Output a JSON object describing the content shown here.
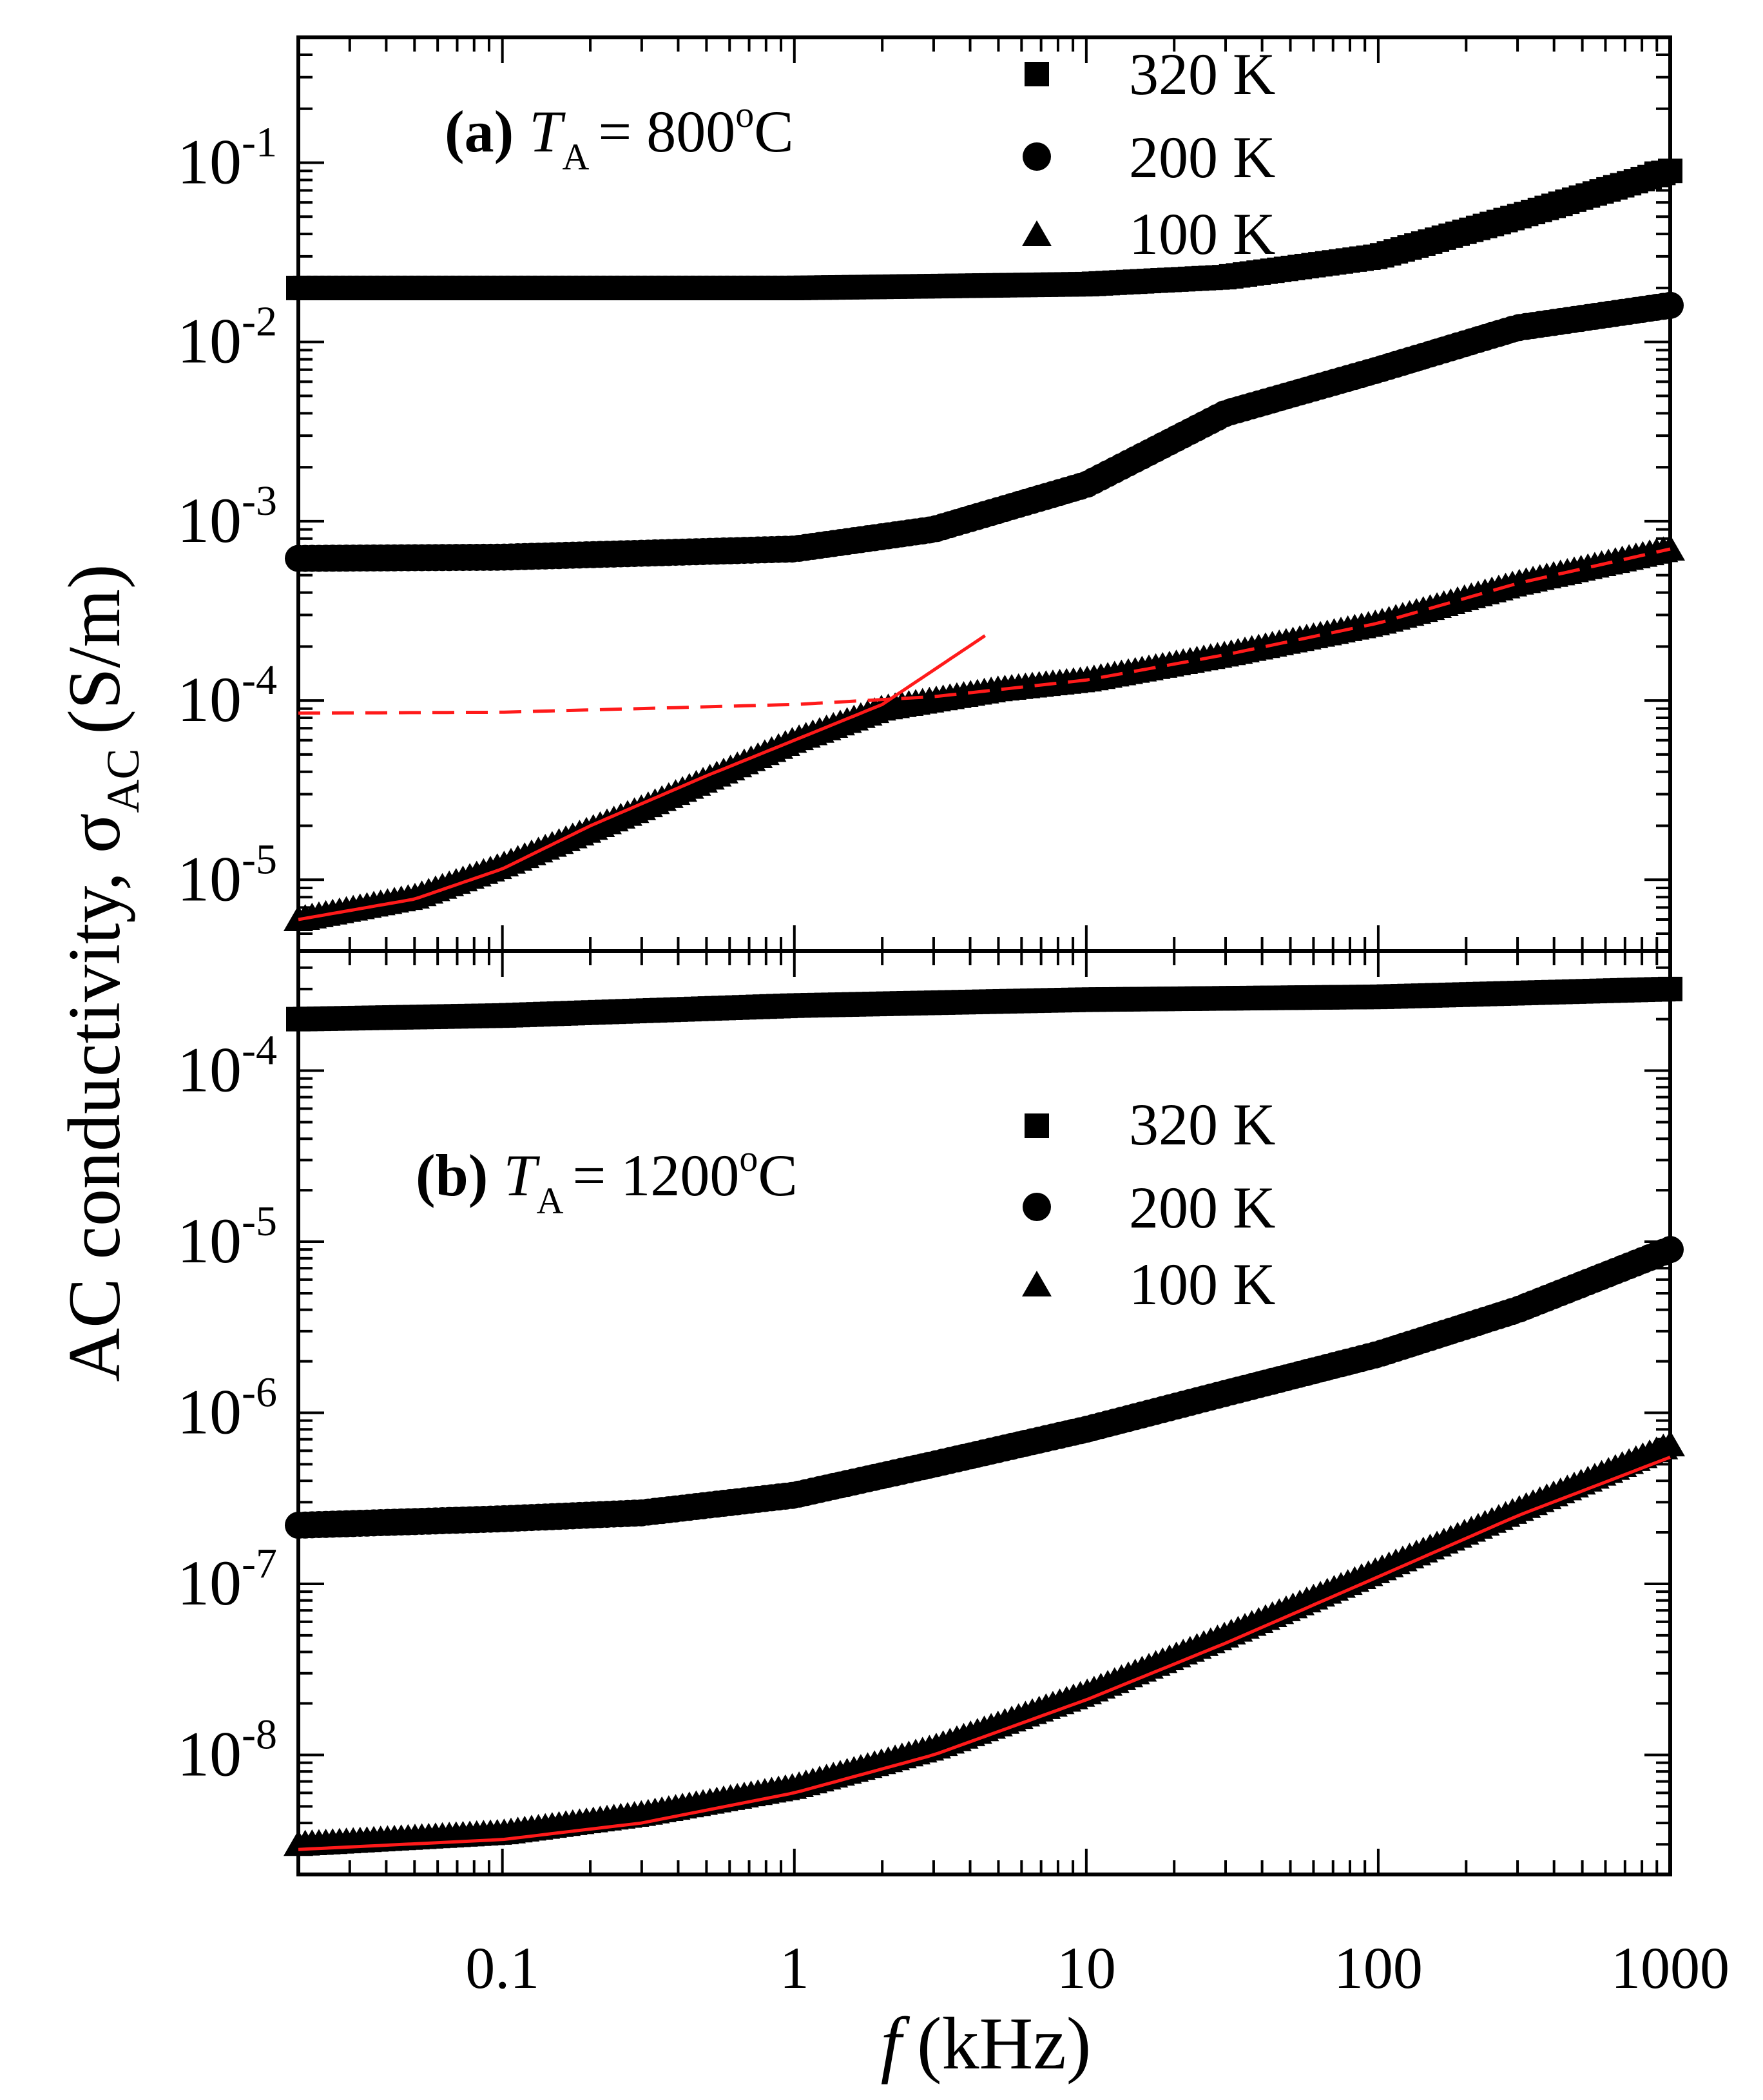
{
  "chart_data": {
    "type": "scatter",
    "x_scale": "log",
    "y_scale": "log",
    "xlabel_symbol": "f",
    "xlabel_unit": "(kHz)",
    "xlim": [
      0.02,
      1000
    ],
    "x_ticks": [
      "0.1",
      "1",
      "10",
      "100",
      "1000"
    ],
    "x_tick_values": [
      0.1,
      1,
      10,
      100,
      1000
    ],
    "ylabel": "AC conductivity, σ",
    "ylabel_sub": "AC",
    "ylabel_unit": "(S/m)",
    "colors": {
      "markers": "#000000",
      "fit": "#ff1a1a"
    },
    "panels": [
      {
        "id": "a",
        "label": "(a)",
        "annotation_symbol": "T",
        "annotation_sub": "A",
        "annotation_value": "= 800",
        "annotation_sup": "o",
        "annotation_unit": "C",
        "ylim": [
          4e-06,
          0.5
        ],
        "y_ticks": [
          {
            "base": "10",
            "exp": "-1",
            "value": 0.1
          },
          {
            "base": "10",
            "exp": "-2",
            "value": 0.01
          },
          {
            "base": "10",
            "exp": "-3",
            "value": 0.001
          },
          {
            "base": "10",
            "exp": "-4",
            "value": 0.0001
          },
          {
            "base": "10",
            "exp": "-5",
            "value": 1e-05
          }
        ],
        "legend": [
          {
            "marker": "square",
            "label": "320 K"
          },
          {
            "marker": "circle",
            "label": "200 K"
          },
          {
            "marker": "triangle",
            "label": "100 K"
          }
        ],
        "series": [
          {
            "name": "320 K",
            "marker": "square",
            "x": [
              0.02,
              1,
              10,
              30,
              100,
              300,
              1000
            ],
            "y": [
              0.02,
              0.02,
              0.021,
              0.023,
              0.03,
              0.05,
              0.09
            ]
          },
          {
            "name": "200 K",
            "marker": "circle",
            "x": [
              0.02,
              0.1,
              1,
              3,
              10,
              30,
              100,
              300,
              1000
            ],
            "y": [
              0.00062,
              0.00063,
              0.0007,
              0.0009,
              0.0016,
              0.004,
              0.007,
              0.012,
              0.016
            ]
          },
          {
            "name": "100 K",
            "marker": "triangle",
            "x": [
              0.02,
              0.05,
              0.1,
              0.3,
              1,
              2,
              5,
              10,
              30,
              100,
              300,
              1000
            ],
            "y": [
              6e-06,
              8e-06,
              1.2e-05,
              2.5e-05,
              6e-05,
              9e-05,
              0.000115,
              0.00013,
              0.00018,
              0.00027,
              0.00045,
              0.0007
            ]
          }
        ],
        "fits": [
          {
            "style": "solid",
            "x": [
              0.02,
              0.05,
              0.1,
              0.2,
              0.5,
              1,
              2,
              4.5
            ],
            "y": [
              6e-06,
              7.8e-06,
              1.15e-05,
              2e-05,
              3.8e-05,
              6e-05,
              9.5e-05,
              0.00023
            ]
          },
          {
            "style": "dashed",
            "x": [
              0.02,
              0.1,
              1,
              3,
              10,
              30,
              100,
              300,
              1000
            ],
            "y": [
              8.5e-05,
              8.6e-05,
              9.5e-05,
              0.000105,
              0.00013,
              0.00018,
              0.00027,
              0.00045,
              0.0007
            ]
          }
        ]
      },
      {
        "id": "b",
        "label": "(b)",
        "annotation_symbol": "T",
        "annotation_sub": "A",
        "annotation_value": "= 1200",
        "annotation_sup": "o",
        "annotation_unit": "C",
        "ylim": [
          2e-09,
          0.0005
        ],
        "y_ticks": [
          {
            "base": "10",
            "exp": "-4",
            "value": 0.0001
          },
          {
            "base": "10",
            "exp": "-5",
            "value": 1e-05
          },
          {
            "base": "10",
            "exp": "-6",
            "value": 1e-06
          },
          {
            "base": "10",
            "exp": "-7",
            "value": 1e-07
          },
          {
            "base": "10",
            "exp": "-8",
            "value": 1e-08
          }
        ],
        "legend": [
          {
            "marker": "square",
            "label": "320 K"
          },
          {
            "marker": "circle",
            "label": "200 K"
          },
          {
            "marker": "triangle",
            "label": "100 K"
          }
        ],
        "series": [
          {
            "name": "320 K",
            "marker": "square",
            "x": [
              0.02,
              0.1,
              1,
              10,
              100,
              1000
            ],
            "y": [
              0.0002,
              0.00021,
              0.00024,
              0.00026,
              0.00027,
              0.0003
            ]
          },
          {
            "name": "200 K",
            "marker": "circle",
            "x": [
              0.02,
              0.1,
              0.3,
              1,
              3,
              10,
              30,
              100,
              300,
              1000
            ],
            "y": [
              2.2e-07,
              2.4e-07,
              2.6e-07,
              3.3e-07,
              5e-07,
              8e-07,
              1.3e-06,
              2.2e-06,
              4e-06,
              9e-06
            ]
          },
          {
            "name": "100 K",
            "marker": "triangle",
            "x": [
              0.02,
              0.1,
              0.3,
              1,
              3,
              10,
              30,
              100,
              300,
              1000
            ],
            "y": [
              3e-09,
              3.5e-09,
              4.5e-09,
              6.5e-09,
              1.1e-08,
              2.3e-08,
              5e-08,
              1.2e-07,
              2.7e-07,
              6.5e-07
            ]
          }
        ],
        "fits": [
          {
            "style": "solid",
            "x": [
              0.02,
              0.1,
              0.3,
              1,
              3,
              10,
              30,
              100,
              300,
              1000
            ],
            "y": [
              2.8e-09,
              3.2e-09,
              4e-09,
              6e-09,
              1e-08,
              2.1e-08,
              4.5e-08,
              1.1e-07,
              2.5e-07,
              5.5e-07
            ]
          }
        ]
      }
    ]
  }
}
